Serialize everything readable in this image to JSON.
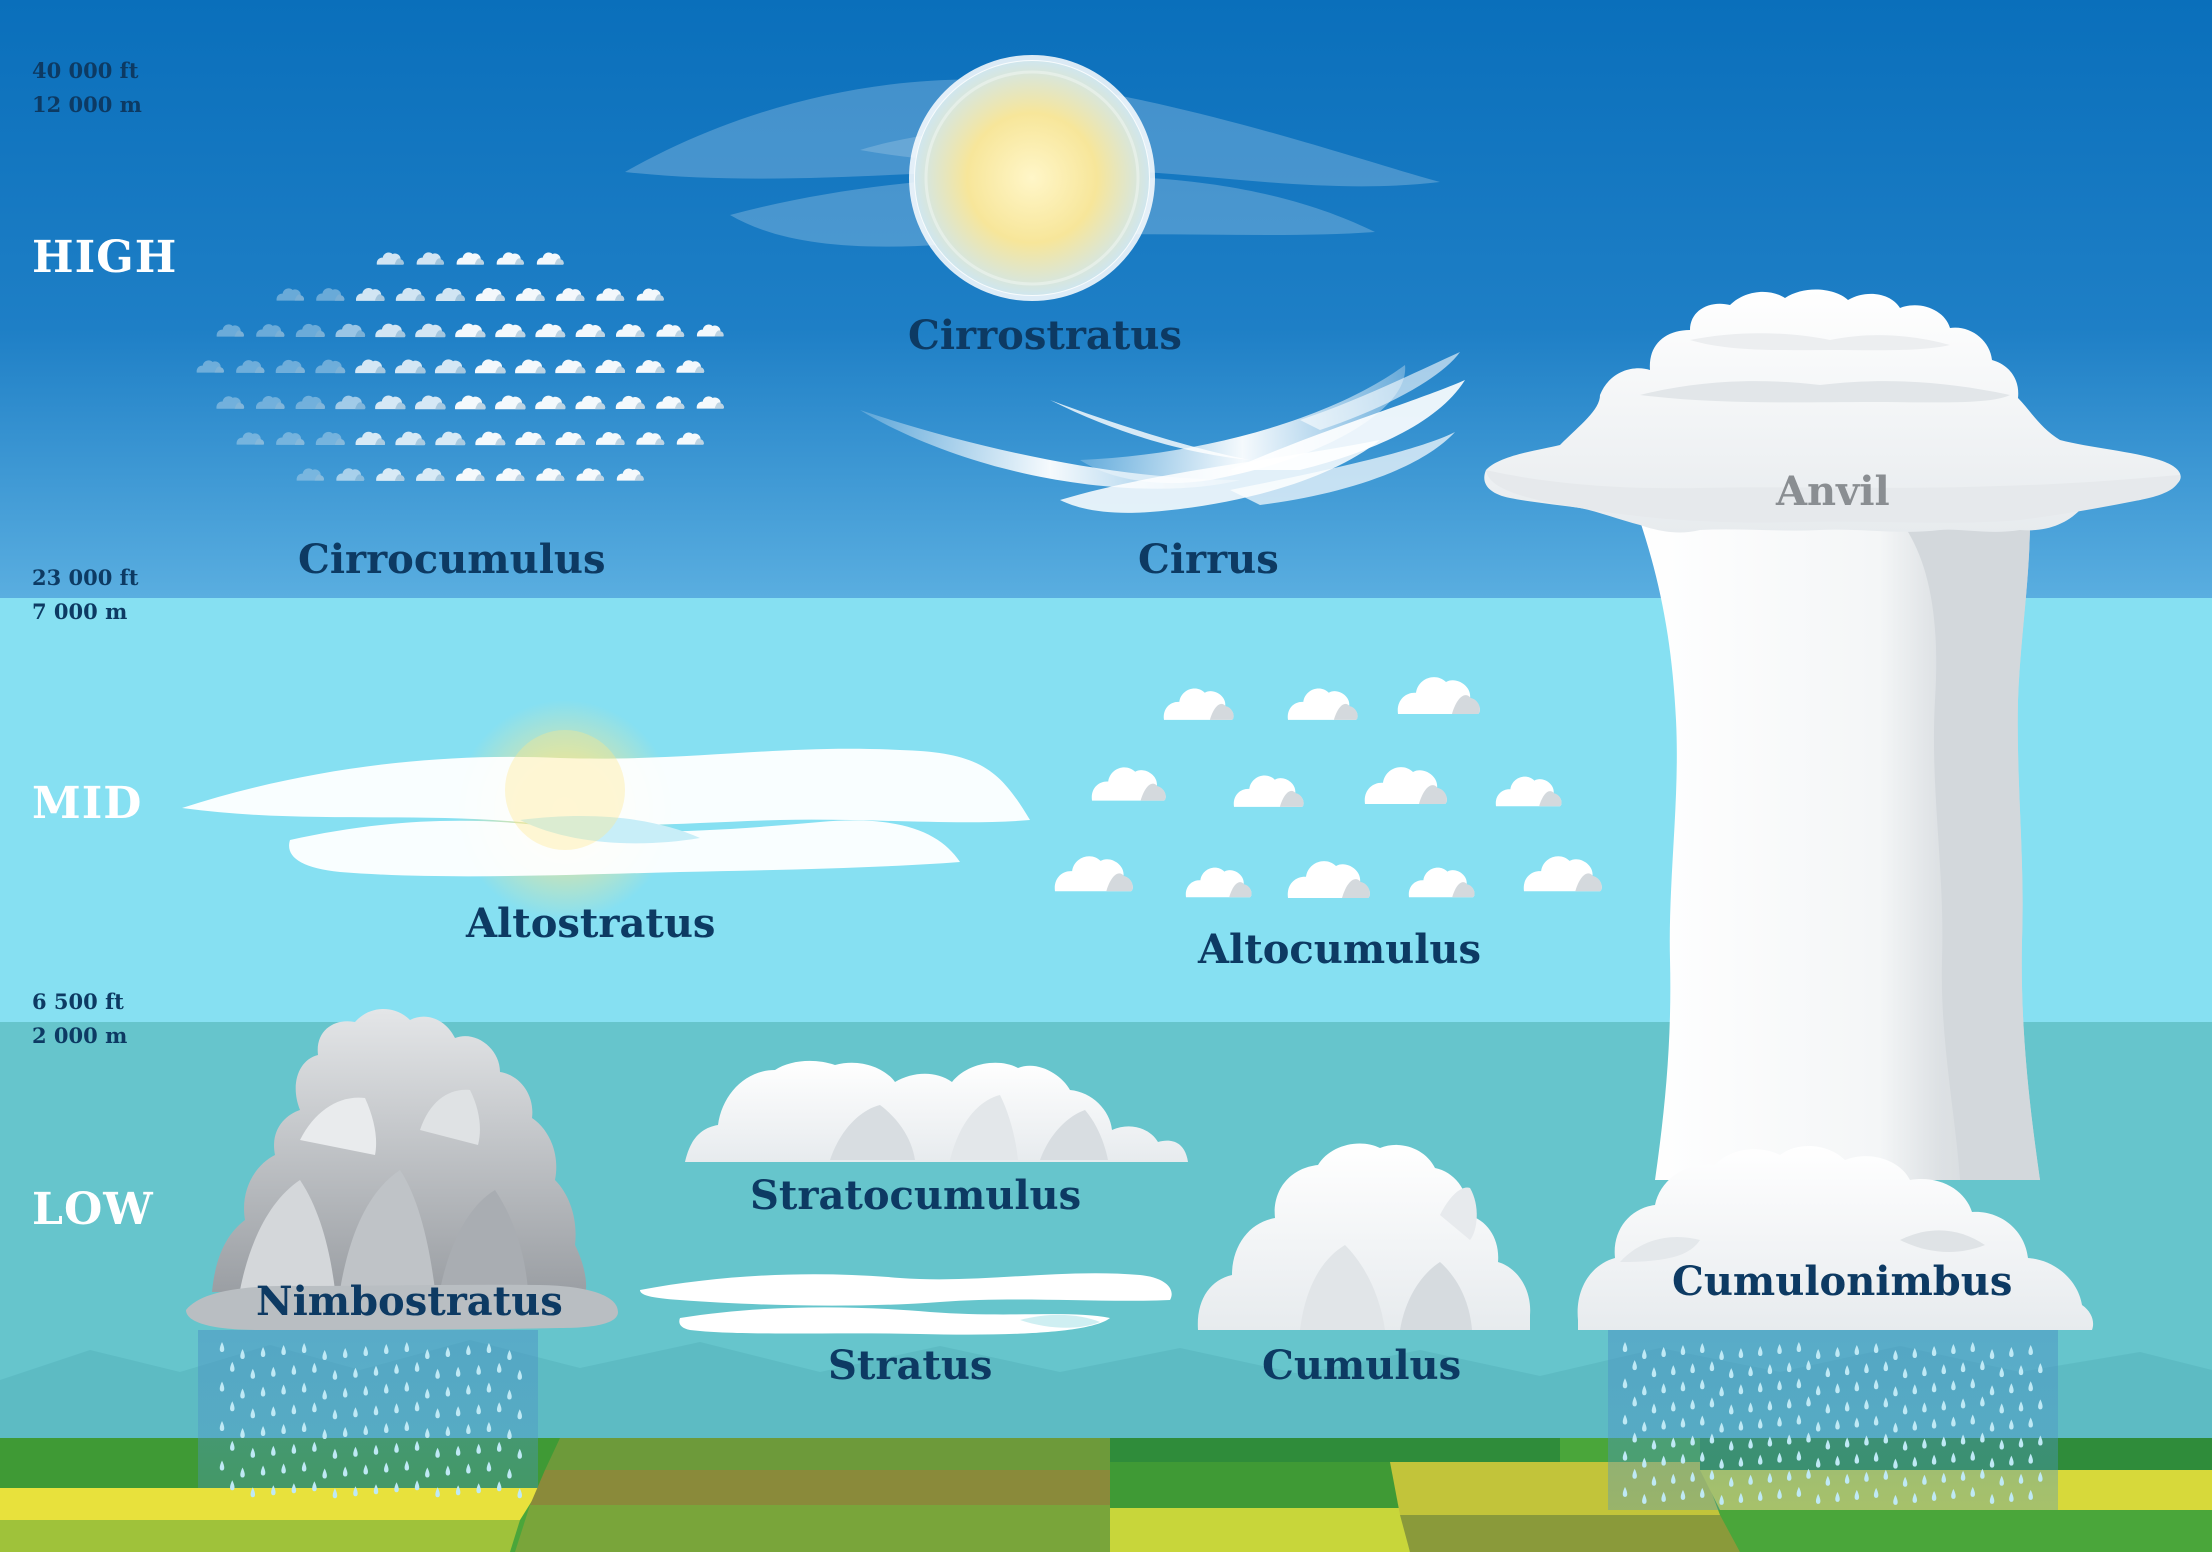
{
  "bands": {
    "high": "HIGH",
    "mid": "MID",
    "low": "LOW"
  },
  "altitudes": {
    "top_ft": "40 000 ft",
    "top_m": "12 000 m",
    "high_ft": "23 000 ft",
    "high_m": "7 000 m",
    "mid_ft": "6 500 ft",
    "mid_m": "2 000 m"
  },
  "clouds": {
    "cirrostratus": "Cirrostratus",
    "cirrocumulus": "Cirrocumulus",
    "cirrus": "Cirrus",
    "anvil": "Anvil",
    "altostratus": "Altostratus",
    "altocumulus": "Altocumulus",
    "nimbostratus": "Nimbostratus",
    "stratocumulus": "Stratocumulus",
    "stratus": "Stratus",
    "cumulus": "Cumulus",
    "cumulonimbus": "Cumulonimbus"
  },
  "colors": {
    "high_sky_top": "#0a6fbb",
    "high_sky_bottom": "#4aa6dc",
    "mid_sky": "#86e0f2",
    "low_sky": "#66c5cc",
    "label_text": "#0d3a63",
    "cloud_white": "#ffffff",
    "cloud_shadow": "#c9d1d6",
    "ground_green": "#4aa63a",
    "ground_yellow": "#e6e03a"
  }
}
